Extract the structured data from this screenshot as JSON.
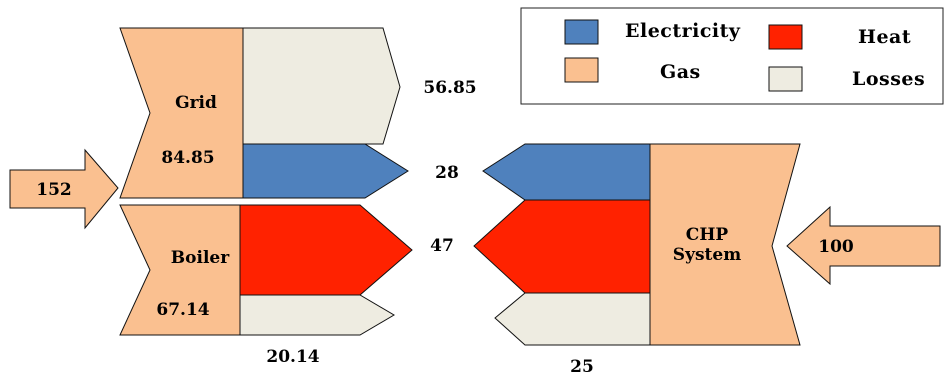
{
  "colors": {
    "electricity": "#4f81bd",
    "gas": "#fac090",
    "heat": "#ff2200",
    "losses": "#eeece1"
  },
  "legend": {
    "electricity": "Electricity",
    "heat": "Heat",
    "gas": "Gas",
    "losses": "Losses"
  },
  "conventional": {
    "input_total": "152",
    "grid_label": "Grid",
    "grid_value": "84.85",
    "boiler_label": "Boiler",
    "boiler_value": "67.14",
    "grid_losses": "56.85",
    "electricity_out": "28",
    "heat_out": "47",
    "boiler_losses": "20.14"
  },
  "chp": {
    "label_line1": "CHP",
    "label_line2": "System",
    "input_total": "100",
    "electricity_out": "28",
    "heat_out": "47",
    "losses": "25"
  }
}
